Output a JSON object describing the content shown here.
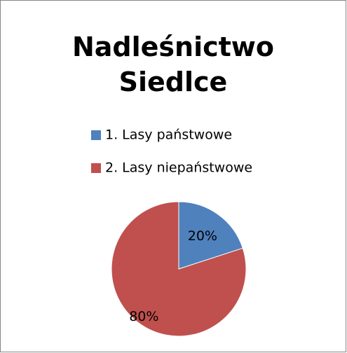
{
  "chart_data": {
    "type": "pie",
    "title": "Nadleśnictwo Siedlce",
    "categories": [
      "1. Lasy państwowe",
      "2. Lasy niepaństwowe"
    ],
    "values": [
      20,
      80
    ],
    "value_labels": [
      "20%",
      "80%"
    ],
    "colors": [
      "#4f81bd",
      "#c0504d"
    ],
    "legend": "top"
  }
}
